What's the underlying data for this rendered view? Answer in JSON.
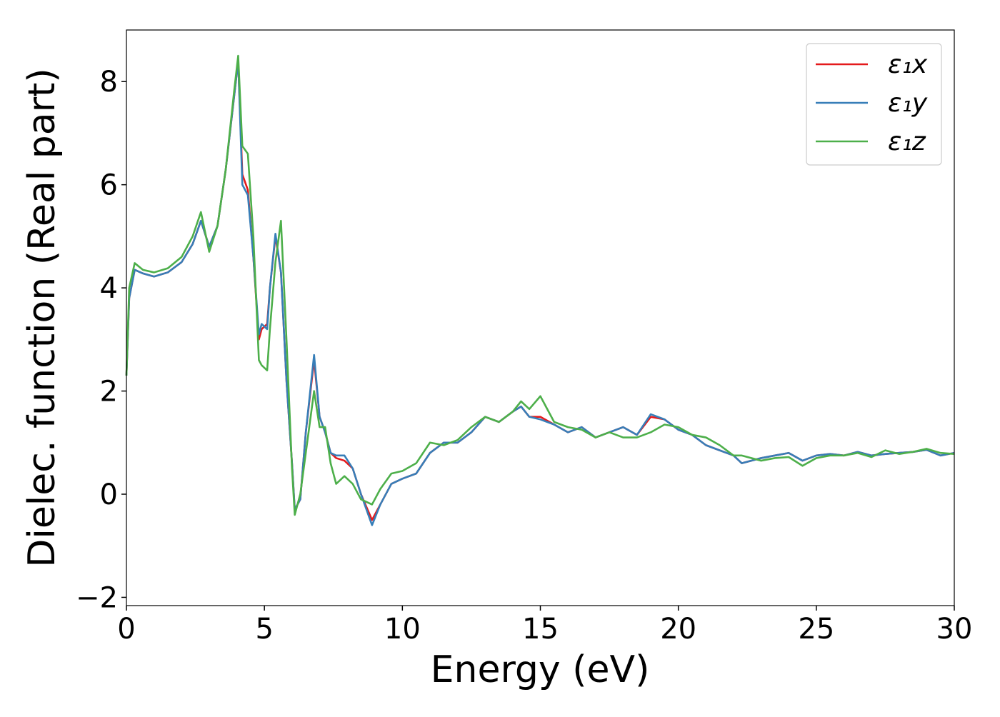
{
  "chart_data": {
    "type": "line",
    "xlabel": "Energy (eV)",
    "ylabel": "Dielec. function (Real part)",
    "x": [
      0,
      0.1,
      0.3,
      0.6,
      1,
      1.5,
      2,
      2.4,
      2.7,
      3,
      3.3,
      3.6,
      3.9,
      4.05,
      4.2,
      4.4,
      4.6,
      4.8,
      4.9,
      5.1,
      5.2,
      5.4,
      5.6,
      5.8,
      6,
      6.1,
      6.3,
      6.5,
      6.8,
      7,
      7.2,
      7.4,
      7.6,
      7.9,
      8.2,
      8.5,
      8.9,
      9.2,
      9.6,
      10,
      10.5,
      11,
      11.5,
      12,
      12.5,
      13,
      13.5,
      14,
      14.3,
      14.6,
      15,
      15.5,
      16,
      16.5,
      17,
      17.5,
      18,
      18.5,
      19,
      19.5,
      20,
      20.5,
      21,
      21.5,
      22,
      22.3,
      23,
      23.5,
      24,
      24.5,
      25,
      25.5,
      26,
      26.5,
      27,
      27.5,
      28,
      28.5,
      29,
      29.5,
      30
    ],
    "series": [
      {
        "name": "ε₁x",
        "color": "#e41a1c",
        "values": [
          2.3,
          3.8,
          4.35,
          4.28,
          4.22,
          4.3,
          4.5,
          4.85,
          5.3,
          4.8,
          5.2,
          6.3,
          7.7,
          8.4,
          6.2,
          5.9,
          4.6,
          3.0,
          3.2,
          3.3,
          4.0,
          5.0,
          4.3,
          2.2,
          0.6,
          -0.3,
          -0.1,
          1.2,
          2.6,
          1.5,
          1.2,
          0.8,
          0.7,
          0.65,
          0.5,
          0.0,
          -0.5,
          -0.2,
          0.2,
          0.3,
          0.4,
          0.8,
          1.0,
          1.0,
          1.2,
          1.5,
          1.4,
          1.6,
          1.7,
          1.5,
          1.5,
          1.35,
          1.2,
          1.3,
          1.1,
          1.2,
          1.3,
          1.15,
          1.5,
          1.45,
          1.25,
          1.15,
          0.95,
          0.85,
          0.75,
          0.6,
          0.7,
          0.75,
          0.8,
          0.65,
          0.75,
          0.78,
          0.75,
          0.82,
          0.75,
          0.78,
          0.8,
          0.82,
          0.86,
          0.75,
          0.8
        ]
      },
      {
        "name": "ε₁y",
        "color": "#377eb8",
        "values": [
          2.3,
          3.8,
          4.35,
          4.28,
          4.22,
          4.3,
          4.5,
          4.85,
          5.3,
          4.8,
          5.2,
          6.3,
          7.7,
          8.4,
          6.0,
          5.8,
          4.6,
          3.1,
          3.3,
          3.2,
          4.0,
          5.05,
          4.3,
          2.2,
          0.6,
          -0.3,
          -0.1,
          1.2,
          2.7,
          1.5,
          1.2,
          0.8,
          0.75,
          0.75,
          0.5,
          0.0,
          -0.6,
          -0.2,
          0.2,
          0.3,
          0.4,
          0.8,
          1.0,
          1.0,
          1.2,
          1.5,
          1.4,
          1.6,
          1.7,
          1.5,
          1.45,
          1.35,
          1.2,
          1.3,
          1.1,
          1.2,
          1.3,
          1.15,
          1.55,
          1.45,
          1.25,
          1.15,
          0.95,
          0.85,
          0.75,
          0.6,
          0.7,
          0.75,
          0.8,
          0.65,
          0.75,
          0.78,
          0.75,
          0.82,
          0.75,
          0.78,
          0.8,
          0.82,
          0.86,
          0.75,
          0.8
        ]
      },
      {
        "name": "ε₁z",
        "color": "#4daf4a",
        "values": [
          2.3,
          4.0,
          4.48,
          4.35,
          4.3,
          4.38,
          4.6,
          5.0,
          5.47,
          4.7,
          5.2,
          6.3,
          7.8,
          8.5,
          6.75,
          6.6,
          5.0,
          2.6,
          2.5,
          2.4,
          3.2,
          4.5,
          5.3,
          3.0,
          0.5,
          -0.4,
          0.0,
          0.8,
          2.0,
          1.3,
          1.3,
          0.6,
          0.2,
          0.35,
          0.2,
          -0.1,
          -0.2,
          0.1,
          0.4,
          0.45,
          0.6,
          1.0,
          0.95,
          1.05,
          1.3,
          1.5,
          1.4,
          1.6,
          1.8,
          1.65,
          1.9,
          1.4,
          1.3,
          1.25,
          1.1,
          1.2,
          1.1,
          1.1,
          1.2,
          1.35,
          1.3,
          1.15,
          1.1,
          0.95,
          0.75,
          0.75,
          0.65,
          0.7,
          0.72,
          0.55,
          0.7,
          0.75,
          0.75,
          0.8,
          0.72,
          0.85,
          0.78,
          0.82,
          0.88,
          0.8,
          0.78
        ]
      }
    ],
    "xlim": [
      0,
      30
    ],
    "xticks": [
      0,
      5,
      10,
      15,
      20,
      25,
      30
    ],
    "ylim": [
      -2.16,
      9.0
    ],
    "yticks": [
      {
        "value": -2,
        "label": "−2"
      },
      0,
      2,
      4,
      6,
      8
    ],
    "grid": false,
    "legend": "upper right"
  }
}
